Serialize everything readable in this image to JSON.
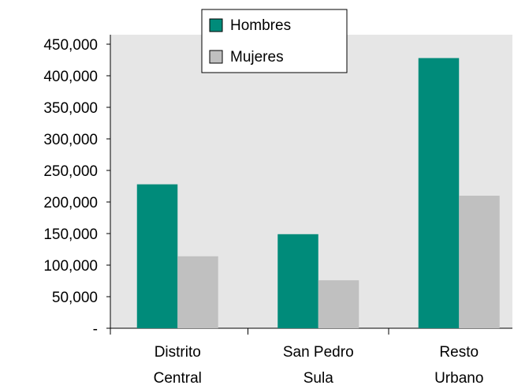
{
  "chart_data": {
    "type": "bar",
    "categories": [
      "Distrito\nCentral",
      "San Pedro\nSula",
      "Resto\nUrbano"
    ],
    "series": [
      {
        "name": "Hombres",
        "color": "#008b7a",
        "values": [
          228000,
          149000,
          428000
        ]
      },
      {
        "name": "Mujeres",
        "color": "#c0c0c0",
        "values": [
          114000,
          76000,
          210000
        ]
      }
    ],
    "ylim": [
      0,
      465000
    ],
    "yticks": [
      {
        "value": 0,
        "label": "-"
      },
      {
        "value": 50000,
        "label": "50,000"
      },
      {
        "value": 100000,
        "label": "100,000"
      },
      {
        "value": 150000,
        "label": "150,000"
      },
      {
        "value": 200000,
        "label": "200,000"
      },
      {
        "value": 250000,
        "label": "250,000"
      },
      {
        "value": 300000,
        "label": "300,000"
      },
      {
        "value": 350000,
        "label": "350,000"
      },
      {
        "value": 400000,
        "label": "400,000"
      },
      {
        "value": 450000,
        "label": "450,000"
      }
    ],
    "legend": "top",
    "grid": false
  }
}
